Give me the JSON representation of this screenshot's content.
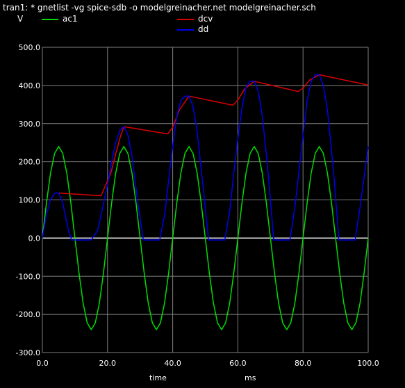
{
  "header": {
    "title": "tran1: * gnetlist -vg spice-sdb -o modelgreinacher.net modelgreinacher.sch",
    "y_unit": "V"
  },
  "chart_data": {
    "type": "line",
    "xlabel": "time",
    "xunit": "ms",
    "xlim": [
      0,
      100
    ],
    "ylim": [
      -300,
      500
    ],
    "x_ticks": [
      0,
      20,
      40,
      60,
      80,
      100
    ],
    "x_tick_labels": [
      "0.0",
      "20.0",
      "40.0",
      "60.0",
      "80.0",
      "100.0"
    ],
    "y_ticks": [
      500,
      400,
      300,
      200,
      100,
      0,
      -100,
      -200,
      -300
    ],
    "y_tick_labels": [
      "500.0",
      "400.0",
      "300.0",
      "200.0",
      "100.0",
      "0.0",
      "-100.0",
      "-200.0",
      "-300.0"
    ],
    "grid": true,
    "background": "#000000",
    "grid_color": "#808080",
    "zero_line_color": "#ffffff",
    "series": [
      {
        "name": "ac1",
        "color": "#00dd00",
        "x": [
          0,
          1.25,
          2.5,
          3.75,
          5,
          6.25,
          7.5,
          8.75,
          10,
          11.25,
          12.5,
          13.75,
          15,
          16.25,
          17.5,
          18.75,
          20,
          21.25,
          22.5,
          23.75,
          25,
          26.25,
          27.5,
          28.75,
          30,
          31.25,
          32.5,
          33.75,
          35,
          36.25,
          37.5,
          38.75,
          40,
          41.25,
          42.5,
          43.75,
          45,
          46.25,
          47.5,
          48.75,
          50,
          51.25,
          52.5,
          53.75,
          55,
          56.25,
          57.5,
          58.75,
          60,
          61.25,
          62.5,
          63.75,
          65,
          66.25,
          67.5,
          68.75,
          70,
          71.25,
          72.5,
          73.75,
          75,
          76.25,
          77.5,
          78.75,
          80,
          81.25,
          82.5,
          83.75,
          85,
          86.25,
          87.5,
          88.75,
          90,
          91.25,
          92.5,
          93.75,
          95,
          96.25,
          97.5,
          98.75,
          100
        ],
        "y": [
          0,
          92,
          170,
          222,
          240,
          222,
          170,
          92,
          0,
          -92,
          -170,
          -222,
          -240,
          -222,
          -170,
          -92,
          0,
          92,
          170,
          222,
          240,
          222,
          170,
          92,
          0,
          -92,
          -170,
          -222,
          -240,
          -222,
          -170,
          -92,
          0,
          92,
          170,
          222,
          240,
          222,
          170,
          92,
          0,
          -92,
          -170,
          -222,
          -240,
          -222,
          -170,
          -92,
          0,
          92,
          170,
          222,
          240,
          222,
          170,
          92,
          0,
          -92,
          -170,
          -222,
          -240,
          -222,
          -170,
          -92,
          0,
          92,
          170,
          222,
          240,
          222,
          170,
          92,
          0,
          -92,
          -170,
          -222,
          -240,
          -222,
          -170,
          -92,
          0
        ]
      },
      {
        "name": "dcv",
        "color": "#dd0000",
        "x": [
          5,
          18,
          21,
          22.5,
          24,
          25,
          38.5,
          40,
          42,
          45,
          58.5,
          60,
          62,
          65,
          78.5,
          80,
          82,
          85,
          100
        ],
        "y": [
          118,
          111,
          170,
          220,
          268,
          292,
          273,
          290,
          335,
          372,
          348,
          362,
          390,
          411,
          384,
          393,
          414,
          428,
          401
        ]
      },
      {
        "name": "dd",
        "color": "#0000ee",
        "x": [
          0,
          1.25,
          2.5,
          3.75,
          5,
          6.25,
          7.5,
          8,
          9,
          12,
          15,
          17,
          18,
          19,
          20,
          21.25,
          22.5,
          23.75,
          25,
          26.25,
          27.5,
          28.75,
          29.5,
          31,
          33,
          36,
          37.5,
          38.75,
          40,
          41.25,
          42.5,
          43.75,
          45,
          46.25,
          47.5,
          48.75,
          49.5,
          51,
          53,
          56,
          57.5,
          58.75,
          60,
          61.25,
          62.5,
          63.75,
          65,
          66.25,
          67.5,
          68.75,
          69.5,
          71,
          73,
          76,
          77.5,
          78.75,
          80,
          81.25,
          82.5,
          83.75,
          85,
          86.25,
          87.5,
          88.75,
          89.5,
          91,
          93,
          96,
          97.5,
          98.75,
          100
        ],
        "y": [
          0,
          62,
          100,
          118,
          118,
          92,
          40,
          20,
          -5,
          -5,
          -5,
          20,
          60,
          100,
          140,
          200,
          250,
          282,
          292,
          270,
          215,
          130,
          80,
          -5,
          -5,
          -5,
          60,
          150,
          240,
          320,
          360,
          372,
          372,
          345,
          280,
          180,
          120,
          -5,
          -5,
          -5,
          70,
          170,
          260,
          340,
          395,
          411,
          411,
          385,
          320,
          220,
          150,
          -5,
          -5,
          -5,
          80,
          175,
          270,
          360,
          410,
          428,
          428,
          400,
          335,
          230,
          160,
          -5,
          -5,
          -5,
          80,
          160,
          240
        ]
      }
    ]
  }
}
